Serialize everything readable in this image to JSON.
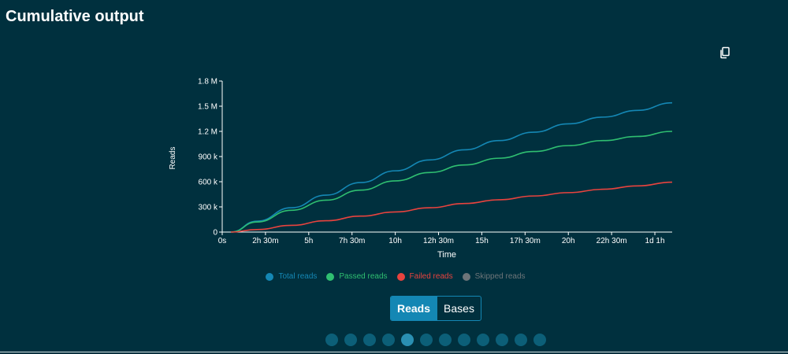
{
  "header": {
    "title": "Cumulative output"
  },
  "toolbar": {
    "copy_icon": "copy-icon"
  },
  "chart_data": {
    "type": "line",
    "title": "",
    "xlabel": "Time",
    "ylabel": "Reads",
    "x_unit": "hours",
    "x_ticks": [
      {
        "value": 0,
        "label": "0s"
      },
      {
        "value": 2.5,
        "label": "2h 30m"
      },
      {
        "value": 5,
        "label": "5h"
      },
      {
        "value": 7.5,
        "label": "7h 30m"
      },
      {
        "value": 10,
        "label": "10h"
      },
      {
        "value": 12.5,
        "label": "12h 30m"
      },
      {
        "value": 15,
        "label": "15h"
      },
      {
        "value": 17.5,
        "label": "17h 30m"
      },
      {
        "value": 20,
        "label": "20h"
      },
      {
        "value": 22.5,
        "label": "22h 30m"
      },
      {
        "value": 25,
        "label": "1d 1h"
      }
    ],
    "y_ticks": [
      {
        "value": 0,
        "label": "0"
      },
      {
        "value": 300000,
        "label": "300 k"
      },
      {
        "value": 600000,
        "label": "600 k"
      },
      {
        "value": 900000,
        "label": "900 k"
      },
      {
        "value": 1200000,
        "label": "1.2 M"
      },
      {
        "value": 1500000,
        "label": "1.5 M"
      },
      {
        "value": 1800000,
        "label": "1.8 M"
      }
    ],
    "xlim": [
      0,
      26
    ],
    "ylim": [
      0,
      1800000
    ],
    "x": [
      0.5,
      2,
      4,
      6,
      8,
      10,
      12,
      14,
      16,
      18,
      20,
      22,
      24,
      26
    ],
    "series": [
      {
        "name": "Total reads",
        "color": "#1487b4",
        "values": [
          0,
          130000,
          290000,
          440000,
          590000,
          730000,
          860000,
          980000,
          1090000,
          1190000,
          1290000,
          1370000,
          1450000,
          1540000
        ]
      },
      {
        "name": "Passed reads",
        "color": "#2fbf71",
        "values": [
          0,
          120000,
          260000,
          380000,
          500000,
          610000,
          710000,
          800000,
          880000,
          960000,
          1030000,
          1090000,
          1140000,
          1200000
        ]
      },
      {
        "name": "Failed reads",
        "color": "#e8433e",
        "values": [
          0,
          30000,
          80000,
          135000,
          190000,
          240000,
          290000,
          340000,
          385000,
          430000,
          470000,
          510000,
          550000,
          595000
        ]
      }
    ],
    "legend": {
      "placement": "bottom-center",
      "items": [
        {
          "name": "Total reads",
          "color": "#1487b4",
          "text_color": "#1487b4"
        },
        {
          "name": "Passed reads",
          "color": "#2fbf71",
          "text_color": "#2fbf71"
        },
        {
          "name": "Failed reads",
          "color": "#e8433e",
          "text_color": "#e8433e"
        },
        {
          "name": "Skipped reads",
          "color": "#6e7579",
          "text_color": "#6e7579"
        }
      ]
    },
    "grid": false
  },
  "toggle": {
    "reads_label": "Reads",
    "bases_label": "Bases",
    "active": "Reads"
  },
  "pager": {
    "count": 12,
    "active_index": 4
  }
}
